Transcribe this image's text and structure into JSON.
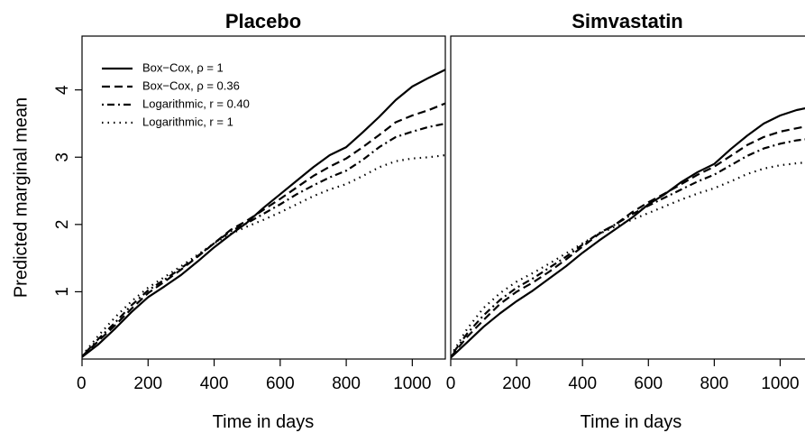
{
  "chart_data": [
    {
      "type": "line",
      "title": "Placebo",
      "xlabel": "Time in days",
      "ylabel": "Predicted marginal mean",
      "xlim": [
        0,
        1100
      ],
      "ylim": [
        0,
        4.8
      ],
      "x_ticks": [
        "0",
        "200",
        "400",
        "600",
        "800",
        "1000"
      ],
      "y_ticks": [
        "1",
        "2",
        "3",
        "4"
      ],
      "grid": false,
      "legend_position": "top-left",
      "legend": [
        {
          "label": "Box−Cox, ρ = 1",
          "style": "solid"
        },
        {
          "label": "Box−Cox, ρ = 0.36",
          "style": "dashed"
        },
        {
          "label": "Logarithmic, r = 0.40",
          "style": "dotdash"
        },
        {
          "label": "Logarithmic, r = 1",
          "style": "dotted"
        }
      ],
      "x": [
        0,
        50,
        100,
        150,
        200,
        250,
        300,
        350,
        400,
        450,
        500,
        550,
        600,
        650,
        700,
        750,
        800,
        850,
        900,
        950,
        1000,
        1050,
        1100
      ],
      "series": [
        {
          "style": "solid",
          "values": [
            0.03,
            0.22,
            0.45,
            0.7,
            0.92,
            1.08,
            1.25,
            1.45,
            1.66,
            1.85,
            2.03,
            2.25,
            2.45,
            2.65,
            2.85,
            3.03,
            3.15,
            3.37,
            3.6,
            3.85,
            4.05,
            4.18,
            4.3
          ]
        },
        {
          "style": "dashed",
          "values": [
            0.04,
            0.27,
            0.5,
            0.75,
            0.98,
            1.15,
            1.33,
            1.52,
            1.72,
            1.92,
            2.06,
            2.22,
            2.38,
            2.55,
            2.72,
            2.86,
            2.98,
            3.15,
            3.33,
            3.52,
            3.62,
            3.7,
            3.8
          ]
        },
        {
          "style": "dotdash",
          "values": [
            0.04,
            0.3,
            0.54,
            0.8,
            1.02,
            1.18,
            1.35,
            1.53,
            1.72,
            1.9,
            2.02,
            2.16,
            2.3,
            2.45,
            2.58,
            2.7,
            2.8,
            2.96,
            3.15,
            3.3,
            3.38,
            3.45,
            3.5
          ]
        },
        {
          "style": "dotted",
          "values": [
            0.05,
            0.35,
            0.62,
            0.86,
            1.06,
            1.22,
            1.38,
            1.55,
            1.72,
            1.86,
            1.97,
            2.07,
            2.18,
            2.3,
            2.42,
            2.52,
            2.6,
            2.72,
            2.85,
            2.94,
            2.98,
            3.0,
            3.03
          ]
        }
      ]
    },
    {
      "type": "line",
      "title": "Simvastatin",
      "xlabel": "Time in days",
      "ylabel": "",
      "xlim": [
        0,
        1100
      ],
      "ylim": [
        0,
        4.8
      ],
      "x_ticks": [
        "0",
        "200",
        "400",
        "600",
        "800",
        "1000"
      ],
      "grid": false,
      "x": [
        0,
        50,
        100,
        150,
        200,
        250,
        300,
        350,
        400,
        450,
        500,
        550,
        600,
        650,
        700,
        750,
        800,
        850,
        900,
        950,
        1000,
        1050,
        1100
      ],
      "series": [
        {
          "style": "solid",
          "values": [
            0.02,
            0.25,
            0.48,
            0.68,
            0.86,
            1.02,
            1.2,
            1.38,
            1.58,
            1.76,
            1.93,
            2.1,
            2.3,
            2.45,
            2.63,
            2.78,
            2.9,
            3.12,
            3.32,
            3.5,
            3.62,
            3.7,
            3.75
          ]
        },
        {
          "style": "dashed",
          "values": [
            0.03,
            0.33,
            0.58,
            0.82,
            1.0,
            1.14,
            1.3,
            1.48,
            1.67,
            1.86,
            2.0,
            2.18,
            2.33,
            2.46,
            2.6,
            2.74,
            2.86,
            3.02,
            3.18,
            3.3,
            3.38,
            3.43,
            3.48
          ]
        },
        {
          "style": "dotdash",
          "values": [
            0.04,
            0.38,
            0.65,
            0.88,
            1.06,
            1.2,
            1.36,
            1.52,
            1.7,
            1.87,
            2.0,
            2.15,
            2.28,
            2.4,
            2.52,
            2.64,
            2.74,
            2.88,
            3.02,
            3.13,
            3.2,
            3.25,
            3.28
          ]
        },
        {
          "style": "dotted",
          "values": [
            0.05,
            0.45,
            0.76,
            0.98,
            1.15,
            1.28,
            1.42,
            1.57,
            1.72,
            1.86,
            1.97,
            2.07,
            2.17,
            2.27,
            2.37,
            2.46,
            2.54,
            2.64,
            2.75,
            2.83,
            2.88,
            2.91,
            2.93
          ]
        }
      ]
    }
  ]
}
